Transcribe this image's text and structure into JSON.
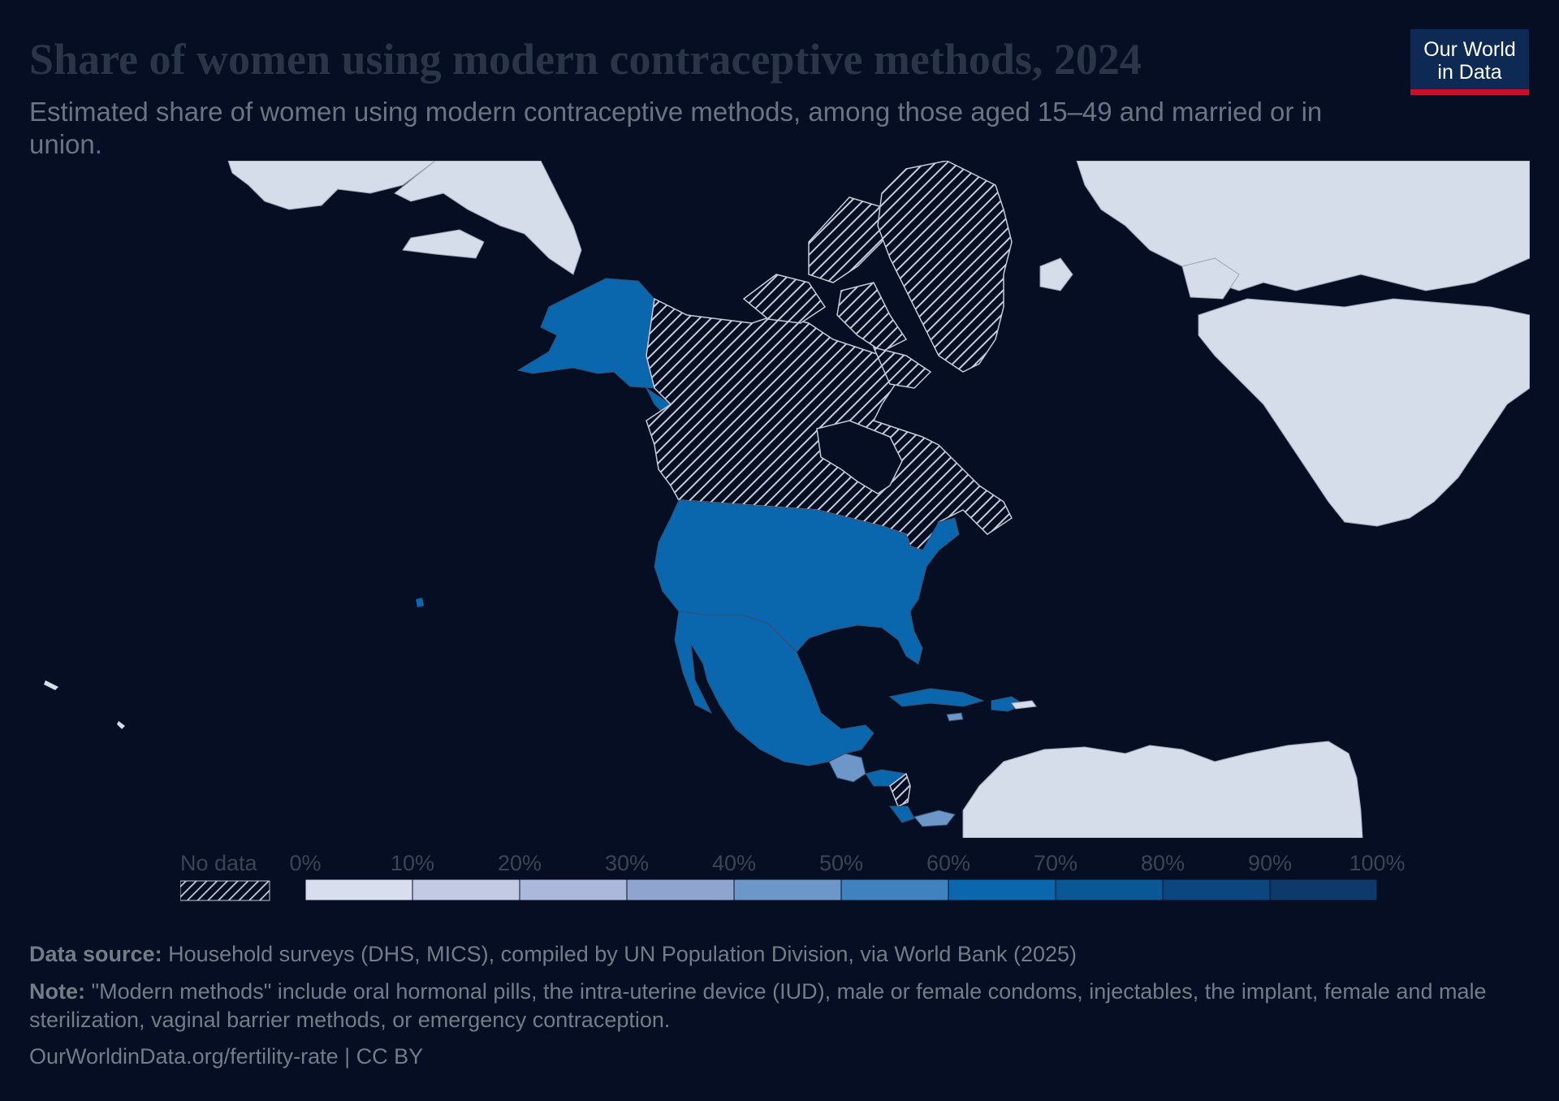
{
  "header": {
    "title": "Share of women using modern contraceptive methods, 2024",
    "subtitle": "Estimated share of women using modern contraceptive methods, among those aged 15–49 and married or in union."
  },
  "logo": {
    "line1": "Our World",
    "line2": "in Data"
  },
  "colors": {
    "background": "#050e22",
    "land_other": "#d5dcea",
    "usa_canada_region_fill": "#0a66ad",
    "no_data_hatch": "#c5cbd8",
    "logo_bg": "#0d2a54",
    "logo_accent": "#c8102e"
  },
  "map": {
    "regions": [
      {
        "name": "United States",
        "value_bin": "60–70%"
      },
      {
        "name": "Mexico",
        "value_bin": "60–70%"
      },
      {
        "name": "Cuba",
        "value_bin": "60–70%"
      },
      {
        "name": "Guatemala",
        "value_bin": "40–50%"
      },
      {
        "name": "Costa Rica",
        "value_bin": "60–70%"
      },
      {
        "name": "Canada",
        "value_bin": "No data"
      },
      {
        "name": "Greenland",
        "value_bin": "No data"
      },
      {
        "name": "Nicaragua",
        "value_bin": "No data"
      }
    ]
  },
  "legend": {
    "no_data_label": "No data",
    "ticks": [
      "0%",
      "10%",
      "20%",
      "30%",
      "40%",
      "50%",
      "60%",
      "70%",
      "80%",
      "90%",
      "100%"
    ],
    "bin_colors": [
      "#d9deee",
      "#c3cbe4",
      "#abb8d9",
      "#8fa5cf",
      "#6d96c9",
      "#3f82c0",
      "#0a66ad",
      "#0a5796",
      "#0b477e",
      "#0d3a6a"
    ]
  },
  "footer": {
    "source_label": "Data source:",
    "source_text": " Household surveys (DHS, MICS), compiled by UN Population Division, via World Bank (2025)",
    "note_label": "Note:",
    "note_text": " \"Modern methods\" include oral hormonal pills, the intra-uterine device (IUD), male or female condoms, injectables, the implant, female and male sterilization, vaginal barrier methods, or emergency contraception.",
    "url": "OurWorldinData.org/fertility-rate | CC BY"
  }
}
